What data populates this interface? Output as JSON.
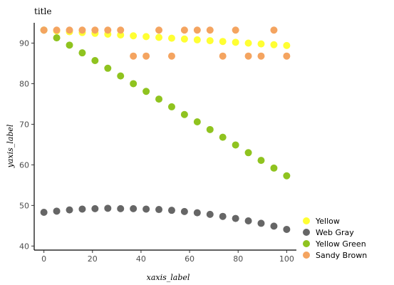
{
  "chart_data": {
    "type": "scatter",
    "title": "title",
    "xlabel": "xaxis_label",
    "ylabel": "yaxis_label",
    "xlim": [
      -4,
      104
    ],
    "ylim": [
      39,
      95
    ],
    "xticks": [
      "0",
      "20",
      "40",
      "60",
      "80",
      "100"
    ],
    "yticks": [
      "40",
      "50",
      "60",
      "70",
      "80",
      "90"
    ],
    "grid": false,
    "legend_position": "right",
    "series": [
      {
        "name": "Yellow",
        "color": "#FFFF33",
        "x": [
          0,
          5.26,
          10.53,
          15.79,
          21.05,
          26.32,
          31.58,
          36.84,
          42.11,
          47.37,
          52.63,
          57.89,
          63.16,
          68.42,
          73.68,
          78.95,
          84.21,
          89.47,
          94.74,
          100
        ],
        "values": [
          93.2,
          93.0,
          92.8,
          92.6,
          92.4,
          92.2,
          92.0,
          91.8,
          91.6,
          91.4,
          91.2,
          91.0,
          90.8,
          90.6,
          90.4,
          90.2,
          90.0,
          89.8,
          89.6,
          89.4
        ]
      },
      {
        "name": "Web Gray",
        "color": "#666666",
        "x": [
          0,
          5.26,
          10.53,
          15.79,
          21.05,
          26.32,
          31.58,
          36.84,
          42.11,
          47.37,
          52.63,
          57.89,
          63.16,
          68.42,
          73.68,
          78.95,
          84.21,
          89.47,
          94.74,
          100
        ],
        "values": [
          48.3,
          48.6,
          48.9,
          49.1,
          49.2,
          49.3,
          49.2,
          49.2,
          49.1,
          49.0,
          48.8,
          48.5,
          48.2,
          47.8,
          47.3,
          46.8,
          46.2,
          45.6,
          44.9,
          44.1
        ]
      },
      {
        "name": "Yellow Green",
        "color": "#8FC31F",
        "x": [
          0,
          5.26,
          10.53,
          15.79,
          21.05,
          26.32,
          31.58,
          36.84,
          42.11,
          47.37,
          52.63,
          57.89,
          63.16,
          68.42,
          73.68,
          78.95,
          84.21,
          89.47,
          94.74,
          100
        ],
        "values": [
          93.2,
          91.3,
          89.5,
          87.6,
          85.7,
          83.8,
          81.9,
          80.0,
          78.1,
          76.2,
          74.3,
          72.4,
          70.6,
          68.7,
          66.8,
          64.9,
          63.0,
          61.1,
          59.2,
          57.3
        ]
      },
      {
        "name": "Sandy Brown",
        "color": "#F4A460",
        "x": [
          0,
          5.26,
          10.53,
          15.79,
          21.05,
          26.32,
          31.58,
          36.84,
          42.11,
          47.37,
          52.63,
          57.89,
          63.16,
          68.42,
          73.68,
          78.95,
          84.21,
          89.47,
          94.74,
          100
        ],
        "values": [
          93.2,
          93.2,
          93.2,
          93.2,
          93.2,
          93.2,
          93.2,
          86.8,
          86.8,
          93.2,
          86.8,
          93.2,
          93.2,
          93.2,
          86.8,
          93.2,
          86.8,
          86.8,
          93.2,
          86.8
        ]
      }
    ]
  }
}
